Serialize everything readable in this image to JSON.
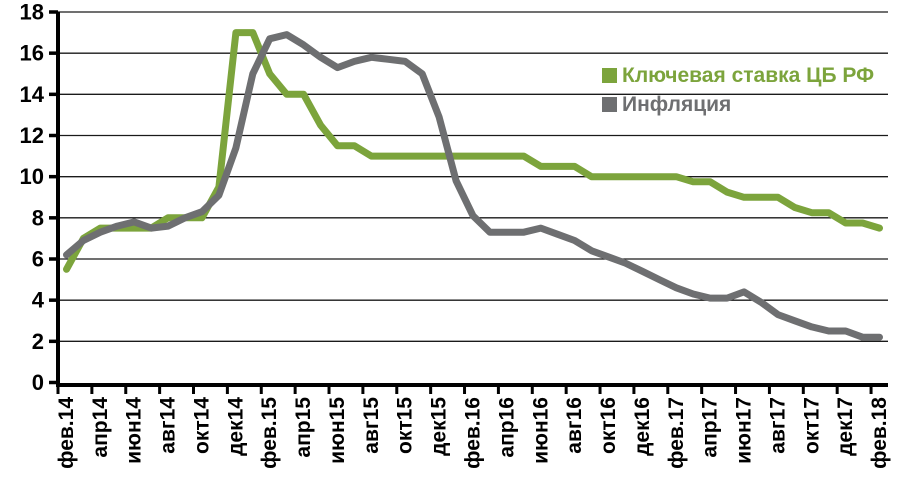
{
  "chart_data": {
    "type": "line",
    "title": "",
    "grid": true,
    "legend_position": "upper-right-inside",
    "y_axis": {
      "min": 0,
      "max": 18,
      "step": 2,
      "tick_labels": [
        "0",
        "2",
        "4",
        "6",
        "8",
        "10",
        "12",
        "14",
        "16",
        "18"
      ]
    },
    "x_axis": {
      "tick_labels": [
        "фев.14",
        "апр14",
        "июн14",
        "авг14",
        "окт14",
        "дек14",
        "фев.15",
        "апр15",
        "июн15",
        "авг15",
        "окт15",
        "дек15",
        "фев.16",
        "апр16",
        "июн16",
        "авг16",
        "окт16",
        "дек16",
        "фев.17",
        "апр17",
        "июн17",
        "авг17",
        "окт17",
        "дек17",
        "фев.18"
      ],
      "months_per_label": 2,
      "label_rotation_deg": -90
    },
    "series": [
      {
        "name": "Ключевая ставка ЦБ РФ",
        "color": "#7CA43C",
        "values": [
          5.5,
          7,
          7.5,
          7.5,
          7.5,
          7.5,
          8,
          8,
          8,
          9.5,
          17,
          17,
          15,
          14,
          14,
          12.5,
          11.5,
          11.5,
          11,
          11,
          11,
          11,
          11,
          11,
          11,
          11,
          11,
          11,
          10.5,
          10.5,
          10.5,
          10,
          10,
          10,
          10,
          10,
          10,
          9.75,
          9.75,
          9.25,
          9,
          9,
          9,
          8.5,
          8.25,
          8.25,
          7.75,
          7.75,
          7.5
        ]
      },
      {
        "name": "Инфляция",
        "color": "#6E6F71",
        "values": [
          6.2,
          6.9,
          7.3,
          7.6,
          7.8,
          7.5,
          7.6,
          8,
          8.3,
          9.1,
          11.4,
          15,
          16.7,
          16.9,
          16.4,
          15.8,
          15.3,
          15.6,
          15.8,
          15.7,
          15.6,
          15,
          12.9,
          9.8,
          8.1,
          7.3,
          7.3,
          7.3,
          7.5,
          7.2,
          6.9,
          6.4,
          6.1,
          5.8,
          5.4,
          5,
          4.6,
          4.3,
          4.1,
          4.1,
          4.4,
          3.9,
          3.3,
          3,
          2.7,
          2.5,
          2.5,
          2.2,
          2.2
        ]
      }
    ],
    "style": {
      "axis_color": "#000000",
      "grid_color": "#1a1a1a",
      "tick_label_color": "#000000",
      "background": "#ffffff"
    }
  }
}
